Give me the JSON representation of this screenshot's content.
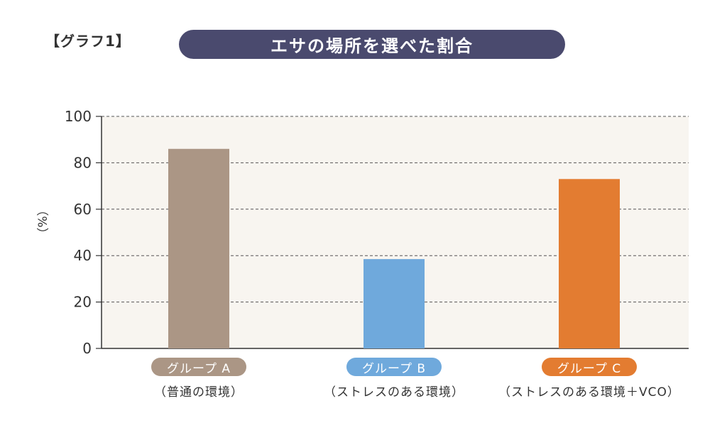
{
  "header": {
    "graph_tag": "【グラフ1】",
    "title": "エサの場所を選べた割合"
  },
  "chart_data": {
    "type": "bar",
    "title": "エサの場所を選べた割合",
    "ylabel": "（%）",
    "xlabel": "",
    "ylim": [
      0,
      100
    ],
    "yticks": [
      0,
      20,
      40,
      60,
      80,
      100
    ],
    "grid": true,
    "categories": [
      "グループ A",
      "グループ B",
      "グループ C"
    ],
    "subtitles": [
      "（普通の環境）",
      "（ストレスのある環境）",
      "（ストレスのある環境＋VCO）"
    ],
    "values": [
      86,
      38.5,
      73
    ],
    "colors": [
      "#ab9685",
      "#6fa9dc",
      "#e37c31"
    ],
    "plot_background": "#f8f5f0"
  }
}
